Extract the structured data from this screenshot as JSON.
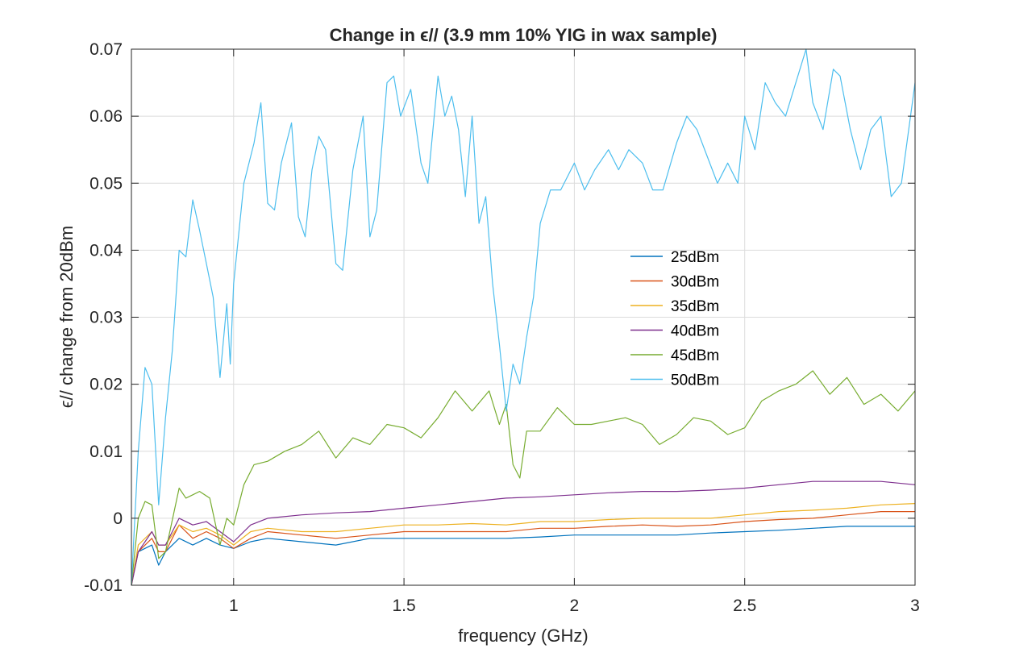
{
  "chart_data": {
    "type": "line",
    "title": "Change in ϵ// (3.9 mm 10% YIG in wax sample)",
    "xlabel": "frequency (GHz)",
    "ylabel": "ϵ// change from 20dBm",
    "xlim": [
      0.7,
      3.0
    ],
    "ylim": [
      -0.01,
      0.07
    ],
    "xticks": [
      1,
      1.5,
      2,
      2.5,
      3
    ],
    "xtick_labels": [
      "1",
      "1.5",
      "2",
      "2.5",
      "3"
    ],
    "yticks": [
      -0.01,
      0,
      0.01,
      0.02,
      0.03,
      0.04,
      0.05,
      0.06,
      0.07
    ],
    "ytick_labels": [
      "-0.01",
      "0",
      "0.01",
      "0.02",
      "0.03",
      "0.04",
      "0.05",
      "0.06",
      "0.07"
    ],
    "grid": true,
    "legend_position": "center-right",
    "series": [
      {
        "name": "25dBm",
        "color": "#0072BD",
        "points": [
          [
            0.7,
            -0.01
          ],
          [
            0.72,
            -0.005
          ],
          [
            0.76,
            -0.004
          ],
          [
            0.78,
            -0.007
          ],
          [
            0.8,
            -0.005
          ],
          [
            0.84,
            -0.003
          ],
          [
            0.88,
            -0.004
          ],
          [
            0.92,
            -0.003
          ],
          [
            0.96,
            -0.004
          ],
          [
            1.0,
            -0.0045
          ],
          [
            1.05,
            -0.0035
          ],
          [
            1.1,
            -0.003
          ],
          [
            1.2,
            -0.0035
          ],
          [
            1.3,
            -0.004
          ],
          [
            1.4,
            -0.003
          ],
          [
            1.5,
            -0.003
          ],
          [
            1.6,
            -0.003
          ],
          [
            1.7,
            -0.003
          ],
          [
            1.8,
            -0.003
          ],
          [
            1.9,
            -0.0028
          ],
          [
            2.0,
            -0.0025
          ],
          [
            2.1,
            -0.0025
          ],
          [
            2.2,
            -0.0025
          ],
          [
            2.3,
            -0.0025
          ],
          [
            2.4,
            -0.0022
          ],
          [
            2.5,
            -0.002
          ],
          [
            2.6,
            -0.0018
          ],
          [
            2.7,
            -0.0015
          ],
          [
            2.8,
            -0.0012
          ],
          [
            2.9,
            -0.0012
          ],
          [
            3.0,
            -0.0012
          ]
        ]
      },
      {
        "name": "30dBm",
        "color": "#D95319",
        "points": [
          [
            0.7,
            -0.01
          ],
          [
            0.72,
            -0.005
          ],
          [
            0.76,
            -0.003
          ],
          [
            0.78,
            -0.005
          ],
          [
            0.8,
            -0.005
          ],
          [
            0.84,
            -0.001
          ],
          [
            0.88,
            -0.003
          ],
          [
            0.92,
            -0.002
          ],
          [
            0.96,
            -0.003
          ],
          [
            1.0,
            -0.0045
          ],
          [
            1.05,
            -0.003
          ],
          [
            1.1,
            -0.002
          ],
          [
            1.2,
            -0.0025
          ],
          [
            1.3,
            -0.003
          ],
          [
            1.4,
            -0.0025
          ],
          [
            1.5,
            -0.002
          ],
          [
            1.6,
            -0.002
          ],
          [
            1.7,
            -0.002
          ],
          [
            1.8,
            -0.002
          ],
          [
            1.9,
            -0.0015
          ],
          [
            2.0,
            -0.0015
          ],
          [
            2.1,
            -0.0012
          ],
          [
            2.2,
            -0.001
          ],
          [
            2.3,
            -0.0012
          ],
          [
            2.4,
            -0.001
          ],
          [
            2.5,
            -0.0005
          ],
          [
            2.6,
            -0.0002
          ],
          [
            2.7,
            0.0
          ],
          [
            2.8,
            0.0005
          ],
          [
            2.9,
            0.001
          ],
          [
            3.0,
            0.001
          ]
        ]
      },
      {
        "name": "35dBm",
        "color": "#EDB120",
        "points": [
          [
            0.7,
            -0.01
          ],
          [
            0.72,
            -0.004
          ],
          [
            0.76,
            -0.002
          ],
          [
            0.78,
            -0.004
          ],
          [
            0.8,
            -0.004
          ],
          [
            0.84,
            -0.001
          ],
          [
            0.88,
            -0.002
          ],
          [
            0.92,
            -0.0015
          ],
          [
            0.96,
            -0.0025
          ],
          [
            1.0,
            -0.004
          ],
          [
            1.05,
            -0.002
          ],
          [
            1.1,
            -0.0015
          ],
          [
            1.2,
            -0.002
          ],
          [
            1.3,
            -0.002
          ],
          [
            1.4,
            -0.0015
          ],
          [
            1.5,
            -0.001
          ],
          [
            1.6,
            -0.001
          ],
          [
            1.7,
            -0.0008
          ],
          [
            1.8,
            -0.001
          ],
          [
            1.9,
            -0.0005
          ],
          [
            2.0,
            -0.0005
          ],
          [
            2.1,
            -0.0002
          ],
          [
            2.2,
            0.0
          ],
          [
            2.3,
            0.0
          ],
          [
            2.4,
            0.0
          ],
          [
            2.5,
            0.0005
          ],
          [
            2.6,
            0.001
          ],
          [
            2.7,
            0.0012
          ],
          [
            2.8,
            0.0015
          ],
          [
            2.9,
            0.002
          ],
          [
            3.0,
            0.0022
          ]
        ]
      },
      {
        "name": "40dBm",
        "color": "#7E2F8E",
        "points": [
          [
            0.7,
            -0.01
          ],
          [
            0.72,
            -0.005
          ],
          [
            0.76,
            -0.002
          ],
          [
            0.78,
            -0.004
          ],
          [
            0.8,
            -0.004
          ],
          [
            0.84,
            0.0
          ],
          [
            0.88,
            -0.001
          ],
          [
            0.92,
            -0.0005
          ],
          [
            0.96,
            -0.002
          ],
          [
            1.0,
            -0.0035
          ],
          [
            1.05,
            -0.001
          ],
          [
            1.1,
            0.0
          ],
          [
            1.2,
            0.0005
          ],
          [
            1.3,
            0.0008
          ],
          [
            1.4,
            0.001
          ],
          [
            1.5,
            0.0015
          ],
          [
            1.6,
            0.002
          ],
          [
            1.7,
            0.0025
          ],
          [
            1.8,
            0.003
          ],
          [
            1.9,
            0.0032
          ],
          [
            2.0,
            0.0035
          ],
          [
            2.1,
            0.0038
          ],
          [
            2.2,
            0.004
          ],
          [
            2.3,
            0.004
          ],
          [
            2.4,
            0.0042
          ],
          [
            2.5,
            0.0045
          ],
          [
            2.6,
            0.005
          ],
          [
            2.7,
            0.0055
          ],
          [
            2.8,
            0.0055
          ],
          [
            2.9,
            0.0055
          ],
          [
            3.0,
            0.005
          ]
        ]
      },
      {
        "name": "45dBm",
        "color": "#77AC30",
        "points": [
          [
            0.7,
            -0.01
          ],
          [
            0.72,
            0.0
          ],
          [
            0.74,
            0.0025
          ],
          [
            0.76,
            0.002
          ],
          [
            0.78,
            -0.006
          ],
          [
            0.8,
            -0.005
          ],
          [
            0.84,
            0.0045
          ],
          [
            0.86,
            0.003
          ],
          [
            0.88,
            0.0035
          ],
          [
            0.9,
            0.004
          ],
          [
            0.93,
            0.003
          ],
          [
            0.96,
            -0.004
          ],
          [
            0.98,
            0.0
          ],
          [
            1.0,
            -0.001
          ],
          [
            1.03,
            0.005
          ],
          [
            1.06,
            0.008
          ],
          [
            1.1,
            0.0085
          ],
          [
            1.15,
            0.01
          ],
          [
            1.2,
            0.011
          ],
          [
            1.25,
            0.013
          ],
          [
            1.3,
            0.009
          ],
          [
            1.35,
            0.012
          ],
          [
            1.4,
            0.011
          ],
          [
            1.45,
            0.014
          ],
          [
            1.5,
            0.0135
          ],
          [
            1.55,
            0.012
          ],
          [
            1.6,
            0.015
          ],
          [
            1.65,
            0.019
          ],
          [
            1.7,
            0.016
          ],
          [
            1.75,
            0.019
          ],
          [
            1.78,
            0.014
          ],
          [
            1.8,
            0.017
          ],
          [
            1.82,
            0.008
          ],
          [
            1.84,
            0.006
          ],
          [
            1.86,
            0.013
          ],
          [
            1.9,
            0.013
          ],
          [
            1.95,
            0.0165
          ],
          [
            2.0,
            0.014
          ],
          [
            2.05,
            0.014
          ],
          [
            2.1,
            0.0145
          ],
          [
            2.15,
            0.015
          ],
          [
            2.2,
            0.014
          ],
          [
            2.25,
            0.011
          ],
          [
            2.3,
            0.0125
          ],
          [
            2.35,
            0.015
          ],
          [
            2.4,
            0.0145
          ],
          [
            2.45,
            0.0125
          ],
          [
            2.5,
            0.0135
          ],
          [
            2.55,
            0.0175
          ],
          [
            2.6,
            0.019
          ],
          [
            2.65,
            0.02
          ],
          [
            2.7,
            0.022
          ],
          [
            2.75,
            0.0185
          ],
          [
            2.8,
            0.021
          ],
          [
            2.85,
            0.017
          ],
          [
            2.9,
            0.0185
          ],
          [
            2.95,
            0.016
          ],
          [
            3.0,
            0.019
          ]
        ]
      },
      {
        "name": "50dBm",
        "color": "#4DBEEE",
        "points": [
          [
            0.7,
            -0.01
          ],
          [
            0.72,
            0.01
          ],
          [
            0.74,
            0.0225
          ],
          [
            0.76,
            0.02
          ],
          [
            0.78,
            0.002
          ],
          [
            0.8,
            0.015
          ],
          [
            0.82,
            0.025
          ],
          [
            0.84,
            0.04
          ],
          [
            0.86,
            0.039
          ],
          [
            0.88,
            0.0475
          ],
          [
            0.9,
            0.043
          ],
          [
            0.92,
            0.038
          ],
          [
            0.94,
            0.033
          ],
          [
            0.96,
            0.021
          ],
          [
            0.98,
            0.032
          ],
          [
            0.99,
            0.023
          ],
          [
            1.0,
            0.035
          ],
          [
            1.03,
            0.05
          ],
          [
            1.06,
            0.056
          ],
          [
            1.08,
            0.062
          ],
          [
            1.1,
            0.047
          ],
          [
            1.12,
            0.046
          ],
          [
            1.14,
            0.053
          ],
          [
            1.17,
            0.059
          ],
          [
            1.19,
            0.045
          ],
          [
            1.21,
            0.042
          ],
          [
            1.23,
            0.052
          ],
          [
            1.25,
            0.057
          ],
          [
            1.27,
            0.055
          ],
          [
            1.3,
            0.038
          ],
          [
            1.32,
            0.037
          ],
          [
            1.35,
            0.052
          ],
          [
            1.38,
            0.06
          ],
          [
            1.4,
            0.042
          ],
          [
            1.42,
            0.046
          ],
          [
            1.45,
            0.065
          ],
          [
            1.47,
            0.066
          ],
          [
            1.49,
            0.06
          ],
          [
            1.52,
            0.064
          ],
          [
            1.55,
            0.053
          ],
          [
            1.57,
            0.05
          ],
          [
            1.6,
            0.066
          ],
          [
            1.62,
            0.06
          ],
          [
            1.64,
            0.063
          ],
          [
            1.66,
            0.058
          ],
          [
            1.68,
            0.048
          ],
          [
            1.7,
            0.06
          ],
          [
            1.72,
            0.044
          ],
          [
            1.74,
            0.048
          ],
          [
            1.76,
            0.035
          ],
          [
            1.78,
            0.026
          ],
          [
            1.8,
            0.016
          ],
          [
            1.82,
            0.023
          ],
          [
            1.84,
            0.02
          ],
          [
            1.86,
            0.027
          ],
          [
            1.88,
            0.033
          ],
          [
            1.9,
            0.044
          ],
          [
            1.93,
            0.049
          ],
          [
            1.96,
            0.049
          ],
          [
            2.0,
            0.053
          ],
          [
            2.03,
            0.049
          ],
          [
            2.06,
            0.052
          ],
          [
            2.1,
            0.055
          ],
          [
            2.13,
            0.052
          ],
          [
            2.16,
            0.055
          ],
          [
            2.2,
            0.053
          ],
          [
            2.23,
            0.049
          ],
          [
            2.26,
            0.049
          ],
          [
            2.3,
            0.056
          ],
          [
            2.33,
            0.06
          ],
          [
            2.36,
            0.058
          ],
          [
            2.39,
            0.054
          ],
          [
            2.42,
            0.05
          ],
          [
            2.45,
            0.053
          ],
          [
            2.48,
            0.05
          ],
          [
            2.5,
            0.06
          ],
          [
            2.53,
            0.055
          ],
          [
            2.56,
            0.065
          ],
          [
            2.59,
            0.062
          ],
          [
            2.62,
            0.06
          ],
          [
            2.65,
            0.065
          ],
          [
            2.68,
            0.07
          ],
          [
            2.7,
            0.062
          ],
          [
            2.73,
            0.058
          ],
          [
            2.76,
            0.067
          ],
          [
            2.78,
            0.066
          ],
          [
            2.81,
            0.058
          ],
          [
            2.84,
            0.052
          ],
          [
            2.87,
            0.058
          ],
          [
            2.9,
            0.06
          ],
          [
            2.93,
            0.048
          ],
          [
            2.96,
            0.05
          ],
          [
            3.0,
            0.065
          ]
        ]
      }
    ]
  }
}
